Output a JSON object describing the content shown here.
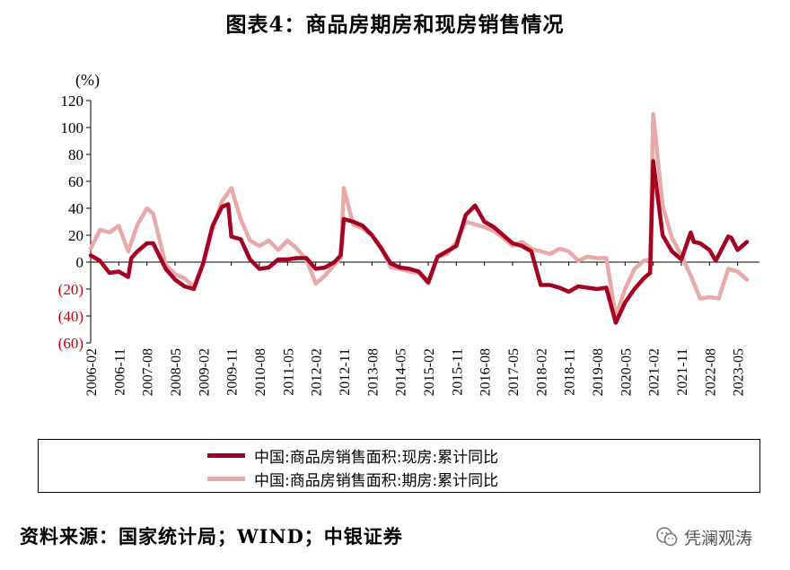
{
  "title": "图表4：商品房期房和现房销售情况",
  "source": "资料来源：国家统计局；WIND；中银证券",
  "watermark": "凭澜观涛",
  "colors": {
    "series_existing": "#A50021",
    "series_presale": "#E8A9A9",
    "negative_tick": "#CC0000",
    "axis": "#000000"
  },
  "legend": [
    {
      "label": "中国:商品房销售面积:现房:累计同比",
      "color": "#A50021"
    },
    {
      "label": "中国:商品房销售面积:期房:累计同比",
      "color": "#E8A9A9"
    }
  ],
  "chart_data": {
    "type": "line",
    "title": "图表4：商品房期房和现房销售情况",
    "ylabel": "(%)",
    "ylim": [
      -60,
      120
    ],
    "yticks": [
      120,
      100,
      80,
      60,
      40,
      20,
      0,
      -20,
      -40,
      -60
    ],
    "ytick_labels": [
      "120",
      "100",
      "80",
      "60",
      "40",
      "20",
      "0",
      "(20)",
      "(40)",
      "(60)"
    ],
    "x_tick_labels": [
      "2006-02",
      "2006-11",
      "2007-08",
      "2008-05",
      "2009-02",
      "2009-11",
      "2010-08",
      "2011-05",
      "2012-02",
      "2012-11",
      "2013-08",
      "2014-05",
      "2015-02",
      "2015-11",
      "2016-08",
      "2017-05",
      "2018-02",
      "2018-11",
      "2019-08",
      "2020-05",
      "2021-02",
      "2021-11",
      "2022-08",
      "2023-05"
    ],
    "grid": false,
    "legend_position": "bottom",
    "series": [
      {
        "name": "中国:商品房销售面积:现房:累计同比",
        "points": [
          [
            "2006-02",
            5
          ],
          [
            "2006-05",
            1
          ],
          [
            "2006-08",
            -8
          ],
          [
            "2006-11",
            -7
          ],
          [
            "2007-02",
            -11
          ],
          [
            "2007-03",
            3
          ],
          [
            "2007-05",
            8
          ],
          [
            "2007-08",
            14
          ],
          [
            "2007-10",
            14
          ],
          [
            "2008-02",
            -5
          ],
          [
            "2008-05",
            -13
          ],
          [
            "2008-08",
            -18
          ],
          [
            "2008-11",
            -20
          ],
          [
            "2009-02",
            -1
          ],
          [
            "2009-05",
            27
          ],
          [
            "2009-08",
            41
          ],
          [
            "2009-10",
            43
          ],
          [
            "2009-11",
            19
          ],
          [
            "2010-02",
            17
          ],
          [
            "2010-05",
            2
          ],
          [
            "2010-08",
            -5
          ],
          [
            "2010-11",
            -4
          ],
          [
            "2011-02",
            2
          ],
          [
            "2011-05",
            2
          ],
          [
            "2011-08",
            3
          ],
          [
            "2011-11",
            3
          ],
          [
            "2012-02",
            -5
          ],
          [
            "2012-05",
            -4
          ],
          [
            "2012-08",
            0
          ],
          [
            "2012-10",
            5
          ],
          [
            "2012-11",
            32
          ],
          [
            "2013-02",
            30
          ],
          [
            "2013-05",
            27
          ],
          [
            "2013-08",
            20
          ],
          [
            "2013-11",
            10
          ],
          [
            "2014-02",
            -1
          ],
          [
            "2014-05",
            -4
          ],
          [
            "2014-08",
            -5
          ],
          [
            "2014-11",
            -7
          ],
          [
            "2015-02",
            -15
          ],
          [
            "2015-05",
            4
          ],
          [
            "2015-08",
            8
          ],
          [
            "2015-11",
            12
          ],
          [
            "2016-02",
            35
          ],
          [
            "2016-05",
            42
          ],
          [
            "2016-08",
            30
          ],
          [
            "2016-11",
            26
          ],
          [
            "2017-02",
            20
          ],
          [
            "2017-05",
            14
          ],
          [
            "2017-08",
            12
          ],
          [
            "2017-11",
            8
          ],
          [
            "2018-02",
            -17
          ],
          [
            "2018-05",
            -17
          ],
          [
            "2018-08",
            -19
          ],
          [
            "2018-11",
            -22
          ],
          [
            "2019-02",
            -18
          ],
          [
            "2019-05",
            -19
          ],
          [
            "2019-08",
            -20
          ],
          [
            "2019-11",
            -19
          ],
          [
            "2020-02",
            -45
          ],
          [
            "2020-05",
            -30
          ],
          [
            "2020-08",
            -20
          ],
          [
            "2020-11",
            -12
          ],
          [
            "2021-01",
            -8
          ],
          [
            "2021-02",
            75
          ],
          [
            "2021-05",
            20
          ],
          [
            "2021-08",
            8
          ],
          [
            "2021-11",
            2
          ],
          [
            "2022-02",
            22
          ],
          [
            "2022-03",
            15
          ],
          [
            "2022-05",
            14
          ],
          [
            "2022-08",
            9
          ],
          [
            "2022-10",
            1
          ],
          [
            "2023-02",
            19
          ],
          [
            "2023-03",
            18
          ],
          [
            "2023-05",
            9
          ],
          [
            "2023-08",
            15
          ]
        ]
      },
      {
        "name": "中国:商品房销售面积:期房:累计同比",
        "points": [
          [
            "2006-02",
            10
          ],
          [
            "2006-05",
            24
          ],
          [
            "2006-08",
            22
          ],
          [
            "2006-11",
            27
          ],
          [
            "2007-02",
            8
          ],
          [
            "2007-05",
            28
          ],
          [
            "2007-08",
            40
          ],
          [
            "2007-10",
            36
          ],
          [
            "2008-02",
            -2
          ],
          [
            "2008-05",
            -9
          ],
          [
            "2008-08",
            -12
          ],
          [
            "2008-11",
            -18
          ],
          [
            "2009-02",
            -1
          ],
          [
            "2009-05",
            25
          ],
          [
            "2009-08",
            45
          ],
          [
            "2009-11",
            55
          ],
          [
            "2010-02",
            32
          ],
          [
            "2010-05",
            16
          ],
          [
            "2010-08",
            12
          ],
          [
            "2010-11",
            16
          ],
          [
            "2011-02",
            9
          ],
          [
            "2011-05",
            16
          ],
          [
            "2011-08",
            10
          ],
          [
            "2011-11",
            2
          ],
          [
            "2012-02",
            -16
          ],
          [
            "2012-05",
            -10
          ],
          [
            "2012-08",
            -2
          ],
          [
            "2012-10",
            3
          ],
          [
            "2012-11",
            55
          ],
          [
            "2013-02",
            28
          ],
          [
            "2013-05",
            25
          ],
          [
            "2013-08",
            20
          ],
          [
            "2013-11",
            11
          ],
          [
            "2014-02",
            -4
          ],
          [
            "2014-05",
            -5
          ],
          [
            "2014-08",
            -7
          ],
          [
            "2014-11",
            -8
          ],
          [
            "2015-02",
            -16
          ],
          [
            "2015-05",
            4
          ],
          [
            "2015-08",
            6
          ],
          [
            "2015-11",
            15
          ],
          [
            "2016-02",
            30
          ],
          [
            "2016-05",
            28
          ],
          [
            "2016-08",
            26
          ],
          [
            "2016-11",
            23
          ],
          [
            "2017-02",
            18
          ],
          [
            "2017-05",
            12
          ],
          [
            "2017-08",
            15
          ],
          [
            "2017-11",
            10
          ],
          [
            "2018-02",
            8
          ],
          [
            "2018-05",
            6
          ],
          [
            "2018-08",
            10
          ],
          [
            "2018-11",
            8
          ],
          [
            "2019-02",
            1
          ],
          [
            "2019-05",
            4
          ],
          [
            "2019-08",
            3
          ],
          [
            "2019-11",
            3
          ],
          [
            "2020-02",
            -40
          ],
          [
            "2020-05",
            -20
          ],
          [
            "2020-08",
            -5
          ],
          [
            "2020-11",
            1
          ],
          [
            "2021-01",
            2
          ],
          [
            "2021-02",
            110
          ],
          [
            "2021-05",
            42
          ],
          [
            "2021-08",
            18
          ],
          [
            "2021-11",
            5
          ],
          [
            "2022-02",
            -10
          ],
          [
            "2022-05",
            -27
          ],
          [
            "2022-08",
            -26
          ],
          [
            "2022-11",
            -27
          ],
          [
            "2023-02",
            -5
          ],
          [
            "2023-05",
            -7
          ],
          [
            "2023-08",
            -13
          ]
        ]
      }
    ]
  }
}
